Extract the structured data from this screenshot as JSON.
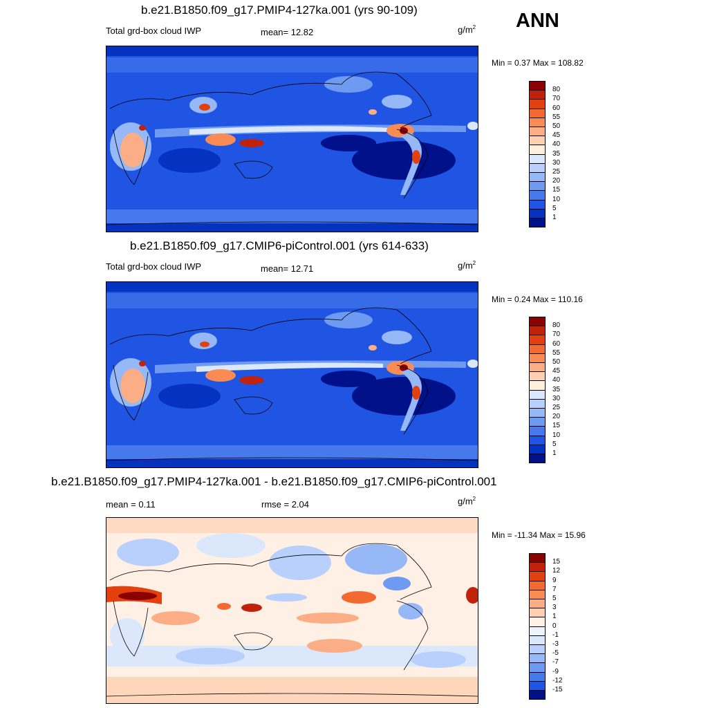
{
  "season": "ANN",
  "panels": [
    {
      "title": "b.e21.B1850.f09_g17.PMIP4-127ka.001 (yrs 90-109)",
      "left_label": "Total grd-box cloud IWP",
      "mid_label": "mean=  12.82",
      "units_base": "g/m",
      "units_exp": "2",
      "minmax": "Min =   0.37 Max = 108.82",
      "kind": "mean",
      "colorbar": {
        "labels": [
          "80",
          "70",
          "60",
          "55",
          "50",
          "45",
          "40",
          "35",
          "30",
          "25",
          "20",
          "15",
          "10",
          "5",
          "1"
        ],
        "colors": [
          "#8b0000",
          "#c1220c",
          "#e2400f",
          "#f26a30",
          "#f98b55",
          "#fbad85",
          "#fcd0b0",
          "#fff0dc",
          "#dbe8fc",
          "#b8d0fb",
          "#96b8f7",
          "#6f9af2",
          "#4779ec",
          "#1f55e2",
          "#0632c0",
          "#00118a"
        ]
      },
      "chart_data": {
        "type": "heatmap",
        "title": "b.e21.B1850.f09_g17.PMIP4-127ka.001 (yrs 90-109)",
        "variable": "Total grd-box cloud IWP",
        "units": "g/m2",
        "mean": 12.82,
        "min": 0.37,
        "max": 108.82,
        "contour_levels": [
          1,
          5,
          10,
          15,
          20,
          25,
          30,
          35,
          40,
          45,
          50,
          55,
          60,
          70,
          80
        ]
      }
    },
    {
      "title": "b.e21.B1850.f09_g17.CMIP6-piControl.001 (yrs 614-633)",
      "left_label": "Total grd-box cloud IWP",
      "mid_label": "mean=  12.71",
      "units_base": "g/m",
      "units_exp": "2",
      "minmax": "Min =   0.24 Max = 110.16",
      "kind": "mean",
      "colorbar": {
        "labels": [
          "80",
          "70",
          "60",
          "55",
          "50",
          "45",
          "40",
          "35",
          "30",
          "25",
          "20",
          "15",
          "10",
          "5",
          "1"
        ],
        "colors": [
          "#8b0000",
          "#c1220c",
          "#e2400f",
          "#f26a30",
          "#f98b55",
          "#fbad85",
          "#fcd0b0",
          "#fff0dc",
          "#dbe8fc",
          "#b8d0fb",
          "#96b8f7",
          "#6f9af2",
          "#4779ec",
          "#1f55e2",
          "#0632c0",
          "#00118a"
        ]
      },
      "chart_data": {
        "type": "heatmap",
        "title": "b.e21.B1850.f09_g17.CMIP6-piControl.001 (yrs 614-633)",
        "variable": "Total grd-box cloud IWP",
        "units": "g/m2",
        "mean": 12.71,
        "min": 0.24,
        "max": 110.16,
        "contour_levels": [
          1,
          5,
          10,
          15,
          20,
          25,
          30,
          35,
          40,
          45,
          50,
          55,
          60,
          70,
          80
        ]
      }
    },
    {
      "title": "b.e21.B1850.f09_g17.PMIP4-127ka.001 - b.e21.B1850.f09_g17.CMIP6-piControl.001",
      "left_label": "mean =   0.11",
      "mid_label": "rmse =   2.04",
      "units_base": "g/m",
      "units_exp": "2",
      "minmax": "Min = -11.34 Max =  15.96",
      "kind": "diff",
      "colorbar": {
        "labels": [
          "15",
          "12",
          "9",
          "7",
          "5",
          "3",
          "1",
          "0",
          "-1",
          "-3",
          "-5",
          "-7",
          "-9",
          "-12",
          "-15"
        ],
        "colors": [
          "#8b0000",
          "#c1220c",
          "#e2400f",
          "#f26a30",
          "#f98b55",
          "#fbad85",
          "#fcd0b0",
          "#fff0e6",
          "#eef4ff",
          "#dbe8fc",
          "#b8d0fb",
          "#96b8f7",
          "#6f9af2",
          "#4779ec",
          "#1f55e2",
          "#00118a"
        ]
      },
      "chart_data": {
        "type": "heatmap",
        "title": "b.e21.B1850.f09_g17.PMIP4-127ka.001 - b.e21.B1850.f09_g17.CMIP6-piControl.001",
        "units": "g/m2",
        "mean": 0.11,
        "rmse": 2.04,
        "min": -11.34,
        "max": 15.96,
        "contour_levels": [
          -15,
          -12,
          -9,
          -7,
          -5,
          -3,
          -1,
          0,
          1,
          3,
          5,
          7,
          9,
          12,
          15
        ]
      }
    }
  ]
}
